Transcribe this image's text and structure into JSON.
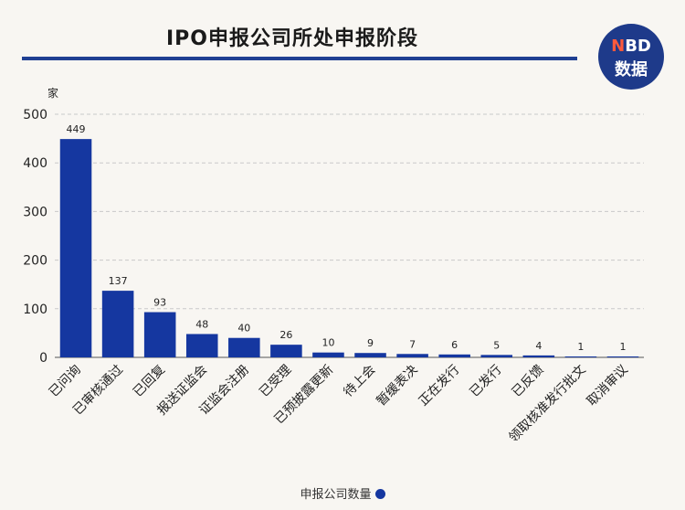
{
  "title": "IPO申报公司所处申报阶段",
  "logo": {
    "line1_n": "N",
    "line1_rest": "BD",
    "line2": "数据"
  },
  "legend": {
    "label": "申报公司数量"
  },
  "colors": {
    "bar": "#1537a0",
    "title_rule": "#1f3f92",
    "logo_bg": "#1e3a8a"
  },
  "chart_data": {
    "type": "bar",
    "title": "IPO申报公司所处申报阶段",
    "ylabel": "家",
    "xlabel": "",
    "ylim": [
      0,
      500
    ],
    "yticks": [
      0,
      100,
      200,
      300,
      400,
      500
    ],
    "grid": true,
    "legend_position": "bottom",
    "categories": [
      "已问询",
      "已审核通过",
      "已回复",
      "报送证监会",
      "证监会注册",
      "已受理",
      "已预披露更新",
      "待上会",
      "暂缓表决",
      "正在发行",
      "已发行",
      "已反馈",
      "领取核准发行批文",
      "取消审议"
    ],
    "series": [
      {
        "name": "申报公司数量",
        "values": [
          449,
          137,
          93,
          48,
          40,
          26,
          10,
          9,
          7,
          6,
          5,
          4,
          1,
          1
        ]
      }
    ]
  }
}
